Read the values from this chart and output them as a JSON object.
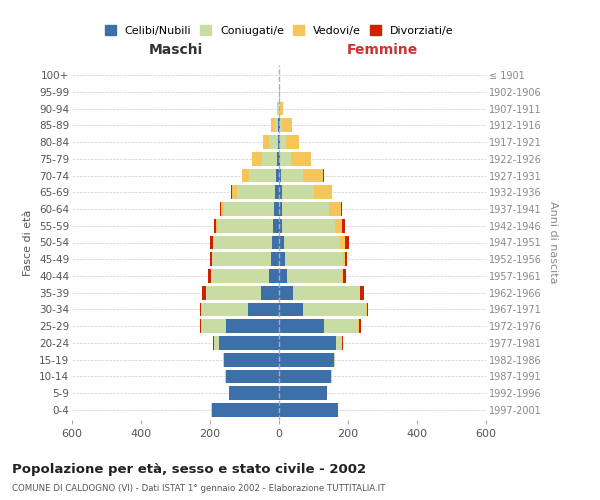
{
  "age_groups": [
    "0-4",
    "5-9",
    "10-14",
    "15-19",
    "20-24",
    "25-29",
    "30-34",
    "35-39",
    "40-44",
    "45-49",
    "50-54",
    "55-59",
    "60-64",
    "65-69",
    "70-74",
    "75-79",
    "80-84",
    "85-89",
    "90-94",
    "95-99",
    "100+"
  ],
  "birth_years": [
    "1997-2001",
    "1992-1996",
    "1987-1991",
    "1982-1986",
    "1977-1981",
    "1972-1976",
    "1967-1971",
    "1962-1966",
    "1957-1961",
    "1952-1956",
    "1947-1951",
    "1942-1946",
    "1937-1941",
    "1932-1936",
    "1927-1931",
    "1922-1926",
    "1917-1921",
    "1912-1916",
    "1907-1911",
    "1902-1906",
    "≤ 1901"
  ],
  "maschi": {
    "celibi": [
      195,
      145,
      155,
      160,
      175,
      155,
      90,
      52,
      28,
      22,
      20,
      18,
      15,
      12,
      8,
      5,
      3,
      2,
      1,
      0,
      0
    ],
    "coniugati": [
      1,
      1,
      2,
      3,
      14,
      70,
      135,
      160,
      170,
      172,
      170,
      160,
      145,
      110,
      80,
      45,
      25,
      10,
      4,
      1,
      0
    ],
    "vedovi": [
      0,
      0,
      0,
      0,
      0,
      0,
      0,
      0,
      0,
      1,
      2,
      5,
      8,
      15,
      18,
      28,
      18,
      10,
      2,
      0,
      0
    ],
    "divorziati": [
      0,
      0,
      0,
      0,
      2,
      5,
      5,
      10,
      8,
      5,
      8,
      5,
      4,
      2,
      2,
      1,
      0,
      0,
      0,
      0,
      0
    ]
  },
  "femmine": {
    "nubili": [
      170,
      138,
      152,
      158,
      165,
      130,
      70,
      42,
      22,
      18,
      15,
      10,
      8,
      8,
      5,
      3,
      2,
      2,
      1,
      0,
      0
    ],
    "coniugate": [
      1,
      1,
      2,
      4,
      18,
      100,
      182,
      192,
      162,
      168,
      163,
      152,
      138,
      92,
      65,
      32,
      18,
      8,
      3,
      1,
      0
    ],
    "vedove": [
      0,
      0,
      0,
      0,
      0,
      2,
      2,
      2,
      2,
      5,
      12,
      20,
      33,
      53,
      58,
      58,
      38,
      28,
      8,
      1,
      0
    ],
    "divorziate": [
      0,
      0,
      0,
      0,
      2,
      5,
      5,
      10,
      8,
      5,
      12,
      8,
      4,
      2,
      1,
      0,
      0,
      0,
      0,
      0,
      0
    ]
  },
  "colors": {
    "celibi_nubili": "#3d6fa8",
    "coniugati": "#c8dca4",
    "vedovi": "#f5c55a",
    "divorziati": "#cc2200"
  },
  "xlim": 600,
  "title": "Popolazione per età, sesso e stato civile - 2002",
  "subtitle": "COMUNE DI CALDOGNO (VI) - Dati ISTAT 1° gennaio 2002 - Elaborazione TUTTITALIA.IT",
  "ylabel_left": "Fasce di età",
  "ylabel_right": "Anni di nascita",
  "xlabel_maschi": "Maschi",
  "xlabel_femmine": "Femmine",
  "legend_labels": [
    "Celibi/Nubili",
    "Coniugati/e",
    "Vedovi/e",
    "Divorziati/e"
  ],
  "background_color": "#ffffff",
  "grid_color": "#cccccc"
}
